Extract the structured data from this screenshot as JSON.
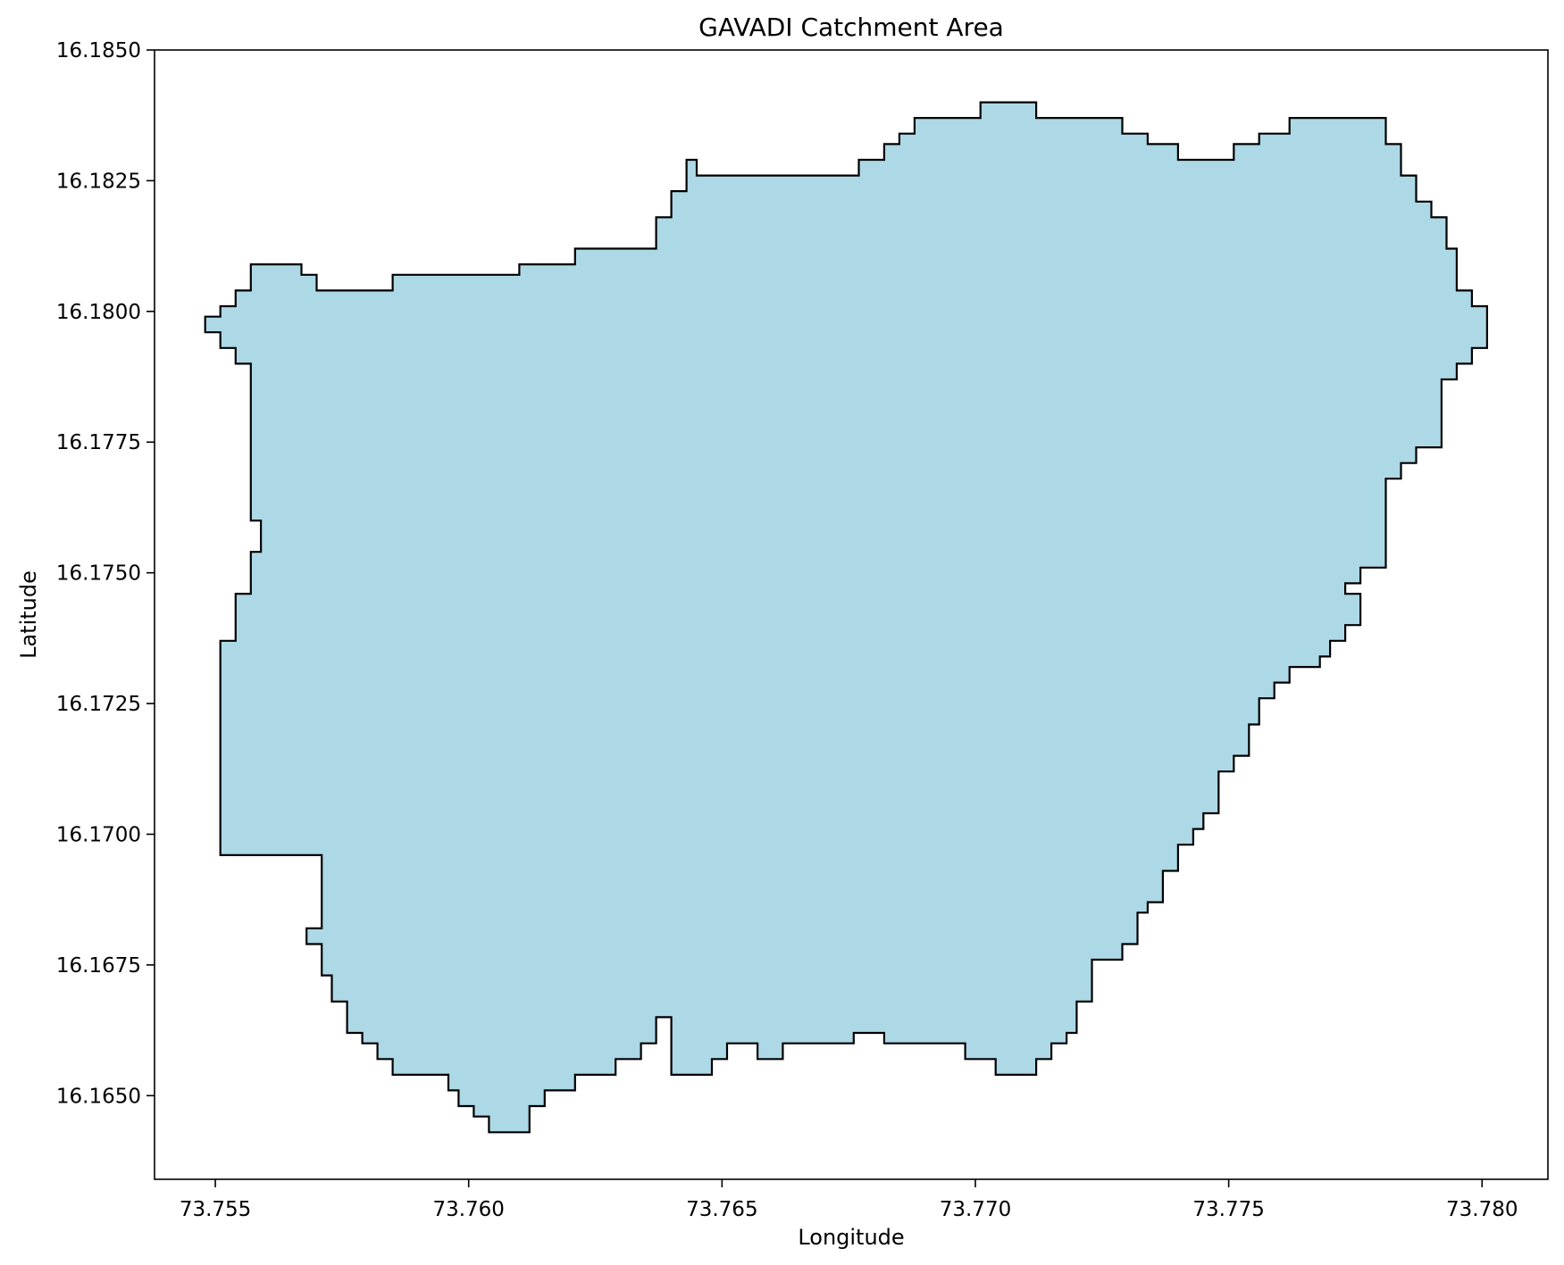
{
  "map": {
    "title": "GAVADI Catchment Area",
    "xlabel": "Longitude",
    "ylabel": "Latitude",
    "xlim": [
      73.7538,
      73.7813
    ],
    "ylim": [
      16.1634,
      16.185
    ],
    "xticks": [
      73.755,
      73.76,
      73.765,
      73.77,
      73.775,
      73.78
    ],
    "xtick_labels": [
      "73.755",
      "73.760",
      "73.765",
      "73.770",
      "73.775",
      "73.780"
    ],
    "yticks": [
      16.165,
      16.1675,
      16.17,
      16.1725,
      16.175,
      16.1775,
      16.18,
      16.1825,
      16.185
    ],
    "ytick_labels": [
      "16.1650",
      "16.1675",
      "16.1700",
      "16.1725",
      "16.1750",
      "16.1775",
      "16.1800",
      "16.1825",
      "16.1850"
    ],
    "colors": {
      "fill": "#add8e6",
      "edge": "#000000",
      "axes": "#000000",
      "background": "#ffffff"
    },
    "catchment_boundary": [
      [
        73.7559,
        16.1809
      ],
      [
        73.7567,
        16.1809
      ],
      [
        73.7567,
        16.1807
      ],
      [
        73.757,
        16.1807
      ],
      [
        73.757,
        16.1804
      ],
      [
        73.7585,
        16.1804
      ],
      [
        73.7585,
        16.1807
      ],
      [
        73.761,
        16.1807
      ],
      [
        73.761,
        16.1809
      ],
      [
        73.7621,
        16.1809
      ],
      [
        73.7621,
        16.1812
      ],
      [
        73.7637,
        16.1812
      ],
      [
        73.7637,
        16.1818
      ],
      [
        73.764,
        16.1818
      ],
      [
        73.764,
        16.1823
      ],
      [
        73.7643,
        16.1823
      ],
      [
        73.7643,
        16.1829
      ],
      [
        73.7645,
        16.1829
      ],
      [
        73.7645,
        16.1826
      ],
      [
        73.7677,
        16.1826
      ],
      [
        73.7677,
        16.1829
      ],
      [
        73.7682,
        16.1829
      ],
      [
        73.7682,
        16.1832
      ],
      [
        73.7685,
        16.1832
      ],
      [
        73.7685,
        16.1834
      ],
      [
        73.7688,
        16.1834
      ],
      [
        73.7688,
        16.1837
      ],
      [
        73.7701,
        16.1837
      ],
      [
        73.7701,
        16.184
      ],
      [
        73.7712,
        16.184
      ],
      [
        73.7712,
        16.1837
      ],
      [
        73.7729,
        16.1837
      ],
      [
        73.7729,
        16.1834
      ],
      [
        73.7734,
        16.1834
      ],
      [
        73.7734,
        16.1832
      ],
      [
        73.774,
        16.1832
      ],
      [
        73.774,
        16.1829
      ],
      [
        73.7751,
        16.1829
      ],
      [
        73.7751,
        16.1832
      ],
      [
        73.7756,
        16.1832
      ],
      [
        73.7756,
        16.1834
      ],
      [
        73.7762,
        16.1834
      ],
      [
        73.7762,
        16.1837
      ],
      [
        73.7781,
        16.1837
      ],
      [
        73.7781,
        16.1832
      ],
      [
        73.7784,
        16.1832
      ],
      [
        73.7784,
        16.1826
      ],
      [
        73.7787,
        16.1826
      ],
      [
        73.7787,
        16.1821
      ],
      [
        73.779,
        16.1821
      ],
      [
        73.779,
        16.1818
      ],
      [
        73.7793,
        16.1818
      ],
      [
        73.7793,
        16.1812
      ],
      [
        73.7795,
        16.1812
      ],
      [
        73.7795,
        16.1804
      ],
      [
        73.7798,
        16.1804
      ],
      [
        73.7798,
        16.1801
      ],
      [
        73.7801,
        16.1801
      ],
      [
        73.7801,
        16.1793
      ],
      [
        73.7798,
        16.1793
      ],
      [
        73.7798,
        16.179
      ],
      [
        73.7795,
        16.179
      ],
      [
        73.7795,
        16.1787
      ],
      [
        73.7792,
        16.1787
      ],
      [
        73.7792,
        16.1774
      ],
      [
        73.7787,
        16.1774
      ],
      [
        73.7787,
        16.1771
      ],
      [
        73.7784,
        16.1771
      ],
      [
        73.7784,
        16.1768
      ],
      [
        73.7781,
        16.1768
      ],
      [
        73.7781,
        16.1751
      ],
      [
        73.7776,
        16.1751
      ],
      [
        73.7776,
        16.1748
      ],
      [
        73.7773,
        16.1748
      ],
      [
        73.7773,
        16.1746
      ],
      [
        73.7776,
        16.1746
      ],
      [
        73.7776,
        16.174
      ],
      [
        73.7773,
        16.174
      ],
      [
        73.7773,
        16.1737
      ],
      [
        73.777,
        16.1737
      ],
      [
        73.777,
        16.1734
      ],
      [
        73.7768,
        16.1734
      ],
      [
        73.7768,
        16.1732
      ],
      [
        73.7762,
        16.1732
      ],
      [
        73.7762,
        16.1729
      ],
      [
        73.7759,
        16.1729
      ],
      [
        73.7759,
        16.1726
      ],
      [
        73.7756,
        16.1726
      ],
      [
        73.7756,
        16.1721
      ],
      [
        73.7754,
        16.1721
      ],
      [
        73.7754,
        16.1715
      ],
      [
        73.7751,
        16.1715
      ],
      [
        73.7751,
        16.1712
      ],
      [
        73.7748,
        16.1712
      ],
      [
        73.7748,
        16.1704
      ],
      [
        73.7745,
        16.1704
      ],
      [
        73.7745,
        16.1701
      ],
      [
        73.7743,
        16.1701
      ],
      [
        73.7743,
        16.1698
      ],
      [
        73.774,
        16.1698
      ],
      [
        73.774,
        16.1693
      ],
      [
        73.7737,
        16.1693
      ],
      [
        73.7737,
        16.1687
      ],
      [
        73.7734,
        16.1687
      ],
      [
        73.7734,
        16.1685
      ],
      [
        73.7732,
        16.1685
      ],
      [
        73.7732,
        16.1679
      ],
      [
        73.7729,
        16.1679
      ],
      [
        73.7729,
        16.1676
      ],
      [
        73.7723,
        16.1676
      ],
      [
        73.7723,
        16.1668
      ],
      [
        73.772,
        16.1668
      ],
      [
        73.772,
        16.1662
      ],
      [
        73.7718,
        16.1662
      ],
      [
        73.7718,
        16.166
      ],
      [
        73.7715,
        16.166
      ],
      [
        73.7715,
        16.1657
      ],
      [
        73.7712,
        16.1657
      ],
      [
        73.7712,
        16.1654
      ],
      [
        73.7704,
        16.1654
      ],
      [
        73.7704,
        16.1657
      ],
      [
        73.7698,
        16.1657
      ],
      [
        73.7698,
        16.166
      ],
      [
        73.7682,
        16.166
      ],
      [
        73.7682,
        16.1662
      ],
      [
        73.7676,
        16.1662
      ],
      [
        73.7676,
        16.166
      ],
      [
        73.7662,
        16.166
      ],
      [
        73.7662,
        16.1657
      ],
      [
        73.7657,
        16.1657
      ],
      [
        73.7657,
        16.166
      ],
      [
        73.7651,
        16.166
      ],
      [
        73.7651,
        16.1657
      ],
      [
        73.7648,
        16.1657
      ],
      [
        73.7648,
        16.1654
      ],
      [
        73.764,
        16.1654
      ],
      [
        73.764,
        16.1665
      ],
      [
        73.7637,
        16.1665
      ],
      [
        73.7637,
        16.166
      ],
      [
        73.7634,
        16.166
      ],
      [
        73.7634,
        16.1657
      ],
      [
        73.7629,
        16.1657
      ],
      [
        73.7629,
        16.1654
      ],
      [
        73.7621,
        16.1654
      ],
      [
        73.7621,
        16.1651
      ],
      [
        73.7615,
        16.1651
      ],
      [
        73.7615,
        16.1648
      ],
      [
        73.7612,
        16.1648
      ],
      [
        73.7612,
        16.1643
      ],
      [
        73.7604,
        16.1643
      ],
      [
        73.7604,
        16.1646
      ],
      [
        73.7601,
        16.1646
      ],
      [
        73.7601,
        16.1648
      ],
      [
        73.7598,
        16.1648
      ],
      [
        73.7598,
        16.1651
      ],
      [
        73.7596,
        16.1651
      ],
      [
        73.7596,
        16.1654
      ],
      [
        73.7585,
        16.1654
      ],
      [
        73.7585,
        16.1657
      ],
      [
        73.7582,
        16.1657
      ],
      [
        73.7582,
        16.166
      ],
      [
        73.7579,
        16.166
      ],
      [
        73.7579,
        16.1662
      ],
      [
        73.7576,
        16.1662
      ],
      [
        73.7576,
        16.1668
      ],
      [
        73.7573,
        16.1668
      ],
      [
        73.7573,
        16.1673
      ],
      [
        73.7571,
        16.1673
      ],
      [
        73.7571,
        16.1679
      ],
      [
        73.7568,
        16.1679
      ],
      [
        73.7568,
        16.1682
      ],
      [
        73.7571,
        16.1682
      ],
      [
        73.7571,
        16.1696
      ],
      [
        73.7551,
        16.1696
      ],
      [
        73.7551,
        16.1737
      ],
      [
        73.7554,
        16.1737
      ],
      [
        73.7554,
        16.1746
      ],
      [
        73.7557,
        16.1746
      ],
      [
        73.7557,
        16.1754
      ],
      [
        73.7559,
        16.1754
      ],
      [
        73.7559,
        16.176
      ],
      [
        73.7557,
        16.176
      ],
      [
        73.7557,
        16.179
      ],
      [
        73.7554,
        16.179
      ],
      [
        73.7554,
        16.1793
      ],
      [
        73.7551,
        16.1793
      ],
      [
        73.7551,
        16.1796
      ],
      [
        73.7548,
        16.1796
      ],
      [
        73.7548,
        16.1799
      ],
      [
        73.7551,
        16.1799
      ],
      [
        73.7551,
        16.1801
      ],
      [
        73.7554,
        16.1801
      ],
      [
        73.7554,
        16.1804
      ],
      [
        73.7557,
        16.1804
      ],
      [
        73.7557,
        16.1809
      ]
    ]
  }
}
